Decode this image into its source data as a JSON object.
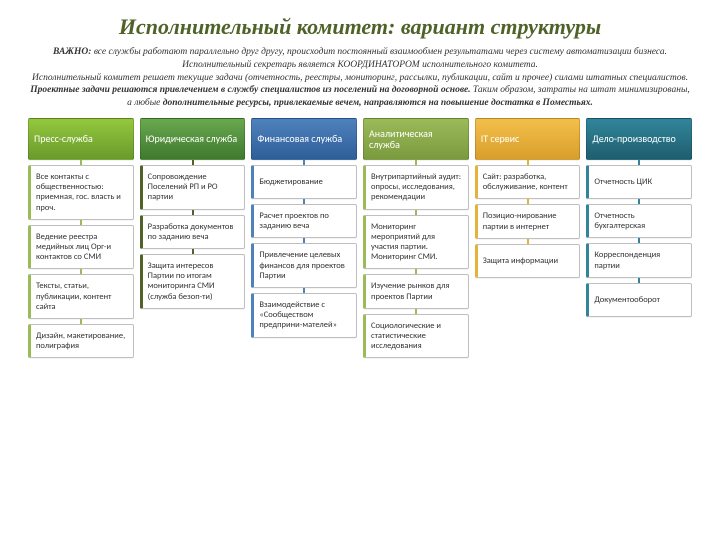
{
  "title": "Исполнительный комитет: вариант структуры",
  "title_color": "#4f6228",
  "intro": {
    "p1_prefix": "ВАЖНО: ",
    "p1_rest": "все службы работают параллельно друг другу, происходит постоянный взаимообмен результатами через систему автоматизации бизнеса.",
    "p2": "Исполнительный секретарь является КООРДИНАТОРОМ исполнительного комитета.",
    "p3_a": "Исполнительный комитет решает текущие задачи (",
    "p3_b": "отчетность, реестры, мониторинг, рассылки, публикации, сайт и прочее",
    "p3_c": ") силами штатных специалистов. ",
    "p3_bold1": "Проектные задачи решаются привлечением в службу специалистов из поселений на договорной основе.",
    "p3_d": " Таким образом, затраты на штат минимизированы, а любые ",
    "p3_bold2": "дополнительные ресурсы, привлекаемые вечем, направляются на повышение достатка в Поместьях."
  },
  "columns": [
    {
      "label": "Пресс-служба",
      "header_bg": "linear-gradient(to bottom,#93c83d,#6a9a2d)",
      "accent": "#9bbb59",
      "items": [
        "Все контакты с общественностью: приемная, гос. власть и проч.",
        "Ведение реестра медийных лиц Орг-и контактов со СМИ",
        "Тексты, статьи, публикации, контент сайта",
        "Дизайн, макетирование, полиграфия"
      ]
    },
    {
      "label": "Юридическая служба",
      "header_bg": "linear-gradient(to bottom,#6aa84f,#3f7a2f)",
      "accent": "#4f6228",
      "items": [
        "Сопровождение Поселений РП и РО партии",
        "Разработка документов по заданию веча",
        "Защита интересов Партии по итогам мониторинга СМИ (служба безоп-ти)"
      ]
    },
    {
      "label": "Финансовая служба",
      "header_bg": "linear-gradient(to bottom,#4f81bd,#2e5f99)",
      "accent": "#4f81bd",
      "items": [
        "Бюджетирование",
        "Расчет проектов по заданию веча",
        "Привлечение целевых финансов для проектов Партии",
        "Взаимодействие с «Сообществом предприни-мателей»"
      ]
    },
    {
      "label": "Аналитическая служба",
      "header_bg": "linear-gradient(to bottom,#9bbb59,#7a9a3f)",
      "accent": "#9bbb59",
      "items": [
        "Внутрипартийный аудит: опросы, исследования, рекомендации",
        "Мониторинг мероприятий для участия партии. Мониторинг СМИ.",
        "Изучение рынков для проектов Партии",
        "Социологические и статистические исследования"
      ]
    },
    {
      "label": "IT сервис",
      "header_bg": "linear-gradient(to bottom,#f2c04a,#d99e2b)",
      "accent": "#e6b23a",
      "items": [
        "Сайт: разработка, обслуживание, контент",
        "Позицио-нирование партии в интернет",
        "Защита информации"
      ]
    },
    {
      "label": "Дело-производство",
      "header_bg": "linear-gradient(to bottom,#31859b,#1f5e6e)",
      "accent": "#31859b",
      "items": [
        "Отчетность ЦИК",
        "Отчетность бухгалтерская",
        "Корреспонденция партии",
        "Документооборот"
      ]
    }
  ]
}
